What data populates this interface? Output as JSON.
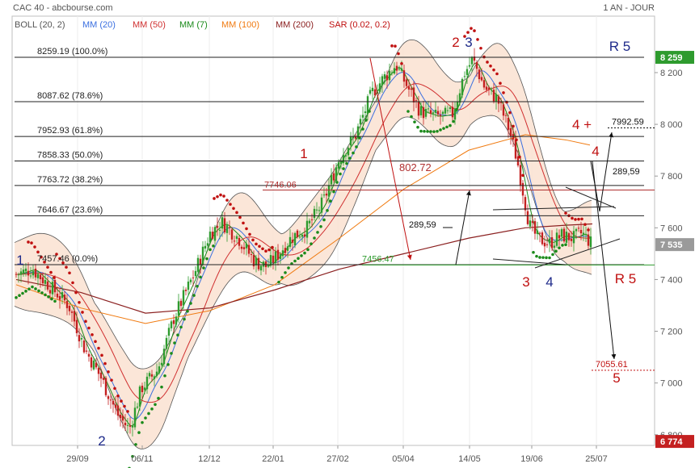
{
  "header": {
    "source": "CAC 40 - abcbourse.com",
    "period": "1 AN - JOUR"
  },
  "legend": [
    {
      "label": "BOLL (20, 2)",
      "color": "#555555"
    },
    {
      "label": "MM (20)",
      "color": "#3a6fe0"
    },
    {
      "label": "MM (50)",
      "color": "#d03030"
    },
    {
      "label": "MM (7)",
      "color": "#1a8a1a"
    },
    {
      "label": "MM (100)",
      "color": "#f07a10"
    },
    {
      "label": "MM (200)",
      "color": "#8b2020"
    },
    {
      "label": "SAR (0.02, 0.2)",
      "color": "#c01010"
    }
  ],
  "colors": {
    "up": "#2e9b2e",
    "down": "#c42020",
    "boll_fill": "#fbe3d4",
    "price_box": "#2e9b2e",
    "low_box": "#c42020"
  },
  "chart_data": {
    "type": "candlestick",
    "ylim": [
      6774,
      8320
    ],
    "y_ticks": [
      6800,
      7000,
      7200,
      7400,
      7600,
      7800,
      8000,
      8200
    ],
    "y_tick_labels": [
      "6 800",
      "7 000",
      "7 200",
      "7 400",
      "7 600",
      "7 800",
      "8 000",
      "8 200"
    ],
    "x_ticks": [
      "29/09",
      "06/11",
      "12/12",
      "22/01",
      "27/02",
      "05/04",
      "14/05",
      "19/06",
      "25/07"
    ],
    "last_price": {
      "value": 7535,
      "label": "7 535"
    },
    "high_box": {
      "value": 8259,
      "label": "8 259"
    },
    "low_box": {
      "value": 6774,
      "label": "6 774"
    },
    "fibonacci": [
      {
        "value": 8259.19,
        "label": "8259.19 (100.0%)"
      },
      {
        "value": 8087.62,
        "label": "8087.62 (78.6%)"
      },
      {
        "value": 7952.93,
        "label": "7952.93 (61.8%)"
      },
      {
        "value": 7858.33,
        "label": "7858.33 (50.0%)"
      },
      {
        "value": 7763.72,
        "label": "7763.72 (38.2%)"
      },
      {
        "value": 7646.67,
        "label": "7646.67 (23.6%)"
      },
      {
        "value": 7457.46,
        "label": "7457.46 (0.0%)"
      }
    ],
    "annotations": {
      "level_7746": "7746.06",
      "level_7456": "7456.47",
      "diff_802": "802.72",
      "diff_289_a": "289,59",
      "diff_289_b": "289,59",
      "target_7992": "7992.59",
      "target_7055": "7055.61",
      "waves": [
        "1",
        "2",
        "1",
        "2",
        "3",
        "4",
        "3",
        "4",
        "4 +",
        "5"
      ],
      "r5_top": "R 5",
      "r5_bottom": "R 5"
    }
  }
}
